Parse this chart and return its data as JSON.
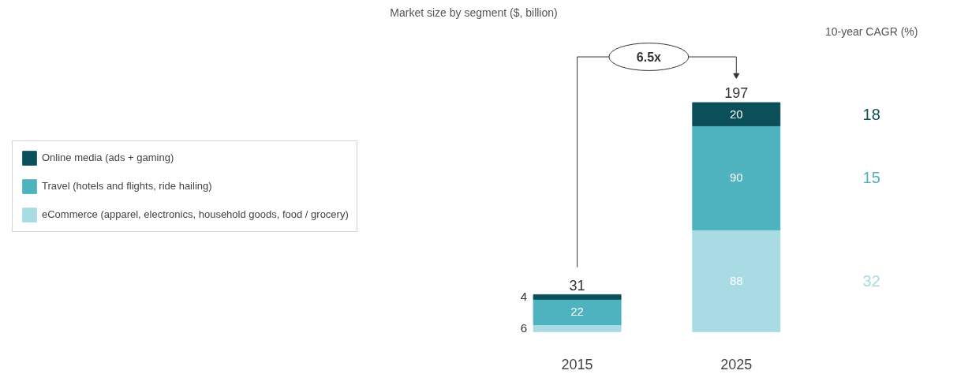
{
  "chart_data": {
    "type": "bar",
    "stacked": true,
    "title": "Market size by segment ($, billion)",
    "categories": [
      "2015",
      "2025"
    ],
    "series": [
      {
        "name": "eCommerce (apparel, electronics, household goods, food / grocery)",
        "color": "#a8dbe3",
        "values": [
          6,
          88
        ]
      },
      {
        "name": "Travel (hotels and flights, ride hailing)",
        "color": "#4fb3bf",
        "values": [
          22,
          90
        ]
      },
      {
        "name": "Online media (ads + gaming)",
        "color": "#0b4f5a",
        "values": [
          4,
          20
        ]
      }
    ],
    "data_labels": true,
    "totals": [
      "31",
      "197"
    ],
    "legend": "left",
    "grid": false,
    "tick_labels": "x",
    "annotations": [
      "6.5x",
      "10-year CAGR (%)",
      "32",
      "15",
      "18"
    ]
  }
}
